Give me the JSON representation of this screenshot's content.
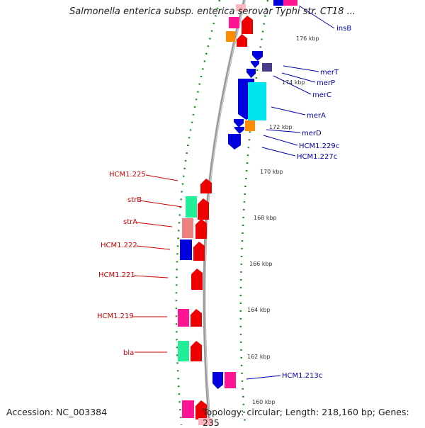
{
  "title": "Salmonella enterica subsp. enterica serovar Typhi str. CT18 ...",
  "accession": "Accession: NC_003384",
  "summary": "Topology: circular; Length: 218,160 bp; Genes: 235",
  "kbp_ticks": [
    "176 kbp",
    "174 kbp",
    "172 kbp",
    "170 kbp",
    "168 kbp",
    "166 kbp",
    "164 kbp",
    "162 kbp",
    "160 kbp"
  ],
  "left_genes": [
    "HCM1.225",
    "strB",
    "strA",
    "HCM1.222",
    "HCM1.221",
    "HCM1.219",
    "bla"
  ],
  "right_genes": [
    "insB",
    "merT",
    "merP",
    "merC",
    "merA",
    "merD",
    "HCM1.229c",
    "HCM1.227c",
    "HCM1.213c"
  ],
  "colors": {
    "left_label": "#cc0000",
    "right_label": "#0000aa",
    "backbone": "#9a9a9a",
    "tick_dots": "#228B22",
    "gene_red": "#ee0000",
    "gene_blue": "#0000dd",
    "gene_pink": "#ff1493",
    "gene_green": "#22ee99",
    "gene_salmon": "#f08080",
    "gene_cyan": "#00e5ee",
    "gene_orange": "#ff8c00",
    "gene_slate": "#483d8b"
  }
}
